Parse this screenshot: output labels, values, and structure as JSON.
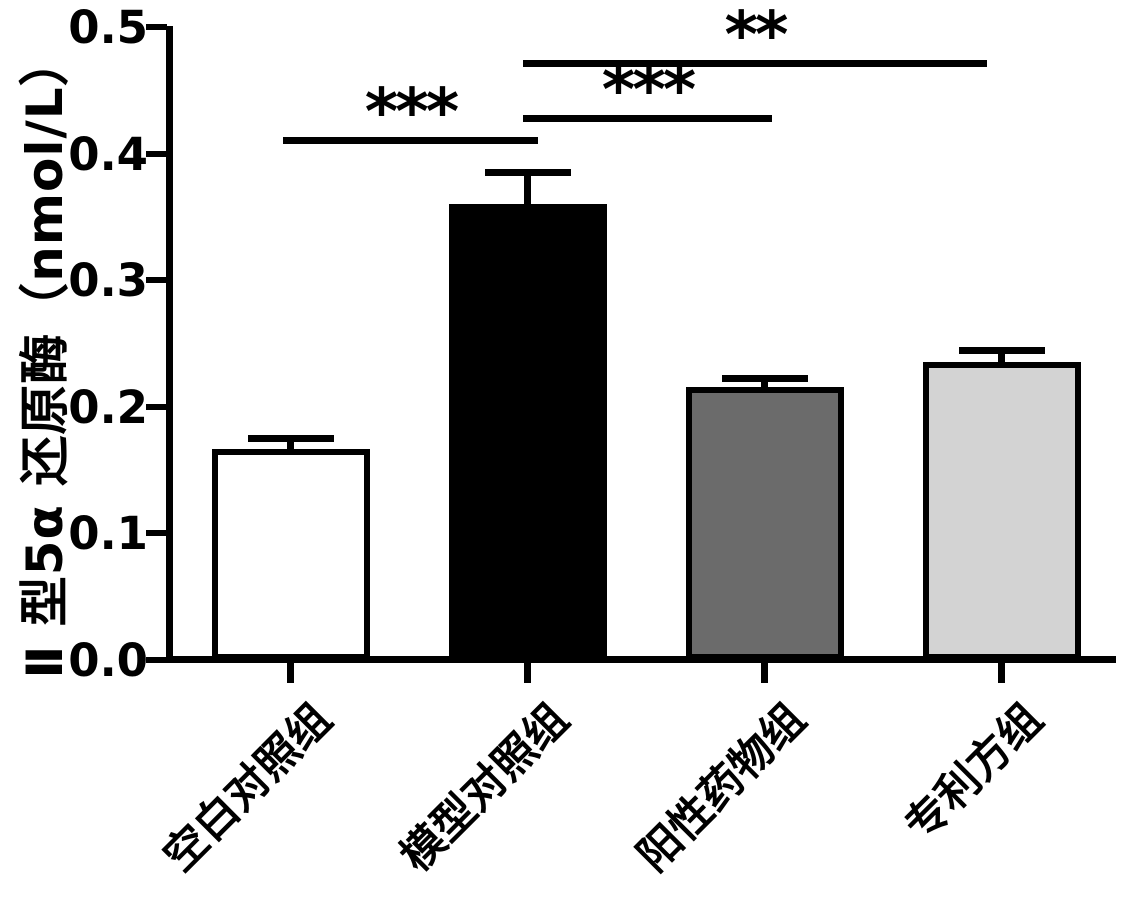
{
  "figure": {
    "background": "#ffffff",
    "text_color": "#000000"
  },
  "chart_data": {
    "type": "bar",
    "title": "",
    "xlabel": "",
    "ylabel": "Ⅱ 型5α 还原酶（nmol/L）",
    "categories": [
      "空白对照组",
      "模型对照组",
      "阳性药物组",
      "专利方组"
    ],
    "values": [
      0.167,
      0.36,
      0.216,
      0.235
    ],
    "errors": [
      0.011,
      0.028,
      0.009,
      0.012
    ],
    "error_bar_style": "upper-cap-only",
    "bar_colors": [
      "#ffffff",
      "#000000",
      "#6b6b6b",
      "#d3d3d3"
    ],
    "bar_border_color": "#000000",
    "ylim": [
      0,
      0.5
    ],
    "yticks": [
      0.0,
      0.1,
      0.2,
      0.3,
      0.4,
      0.5
    ],
    "ytick_labels": [
      "0.0",
      "0.1",
      "0.2",
      "0.3",
      "0.4",
      "0.5"
    ],
    "grid": false,
    "legend": false,
    "significance": [
      {
        "from": 0,
        "to": 1,
        "label": "***"
      },
      {
        "from": 1,
        "to": 2,
        "label": "***"
      },
      {
        "from": 1,
        "to": 3,
        "label": "**"
      }
    ]
  }
}
